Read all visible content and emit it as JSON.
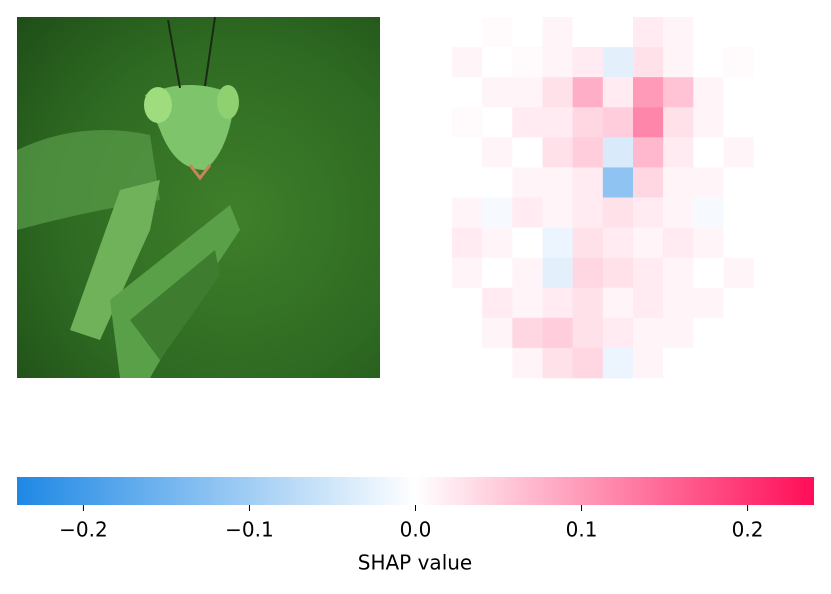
{
  "chart_data": {
    "type": "heatmap",
    "z": [
      [
        0,
        0.005,
        0,
        0.01,
        0,
        0,
        0.02,
        0.01,
        0,
        0,
        0,
        0
      ],
      [
        0.01,
        0,
        0.005,
        0.01,
        0.02,
        -0.03,
        0.03,
        0.01,
        0,
        0.005,
        0,
        0
      ],
      [
        0,
        0.01,
        0.01,
        0.03,
        0.08,
        0.02,
        0.1,
        0.06,
        0.01,
        0,
        0,
        0
      ],
      [
        0.005,
        0,
        0.02,
        0.02,
        0.04,
        0.05,
        0.12,
        0.03,
        0.01,
        0,
        0,
        0
      ],
      [
        0,
        0.01,
        0,
        0.03,
        0.05,
        -0.04,
        0.07,
        0.02,
        0,
        0.01,
        0,
        0
      ],
      [
        0,
        0,
        0.01,
        0.01,
        0.02,
        -0.12,
        0.04,
        0.01,
        0.01,
        0,
        0,
        0
      ],
      [
        0.01,
        -0.01,
        0.02,
        0.01,
        0.02,
        0.03,
        0.02,
        0.01,
        -0.01,
        0,
        0,
        0
      ],
      [
        0.02,
        0.01,
        0,
        -0.02,
        0.03,
        0.02,
        0.01,
        0.02,
        0.01,
        0,
        0,
        0
      ],
      [
        0.01,
        0,
        0.01,
        -0.03,
        0.04,
        0.03,
        0.02,
        0.01,
        0,
        0.01,
        0,
        0
      ],
      [
        0,
        0.02,
        0.01,
        0.02,
        0.03,
        0.01,
        0.02,
        0.01,
        0.01,
        0,
        0,
        0
      ],
      [
        0,
        0.01,
        0.04,
        0.05,
        0.03,
        0.02,
        0.01,
        0.01,
        0,
        0,
        0,
        0
      ],
      [
        0,
        0,
        0.01,
        0.03,
        0.04,
        -0.02,
        0.01,
        0,
        0,
        0,
        0,
        0
      ]
    ],
    "colors": [
      "#1e88e5",
      "#ffffff",
      "#ff0d57"
    ],
    "clim": [
      -0.24,
      0.24
    ],
    "cticks": [
      {
        "value": -0.2,
        "label": "−0.2"
      },
      {
        "value": -0.1,
        "label": "−0.1"
      },
      {
        "value": 0,
        "label": "0.0"
      },
      0.1,
      0.2
    ],
    "colorbar_label": "SHAP value"
  }
}
